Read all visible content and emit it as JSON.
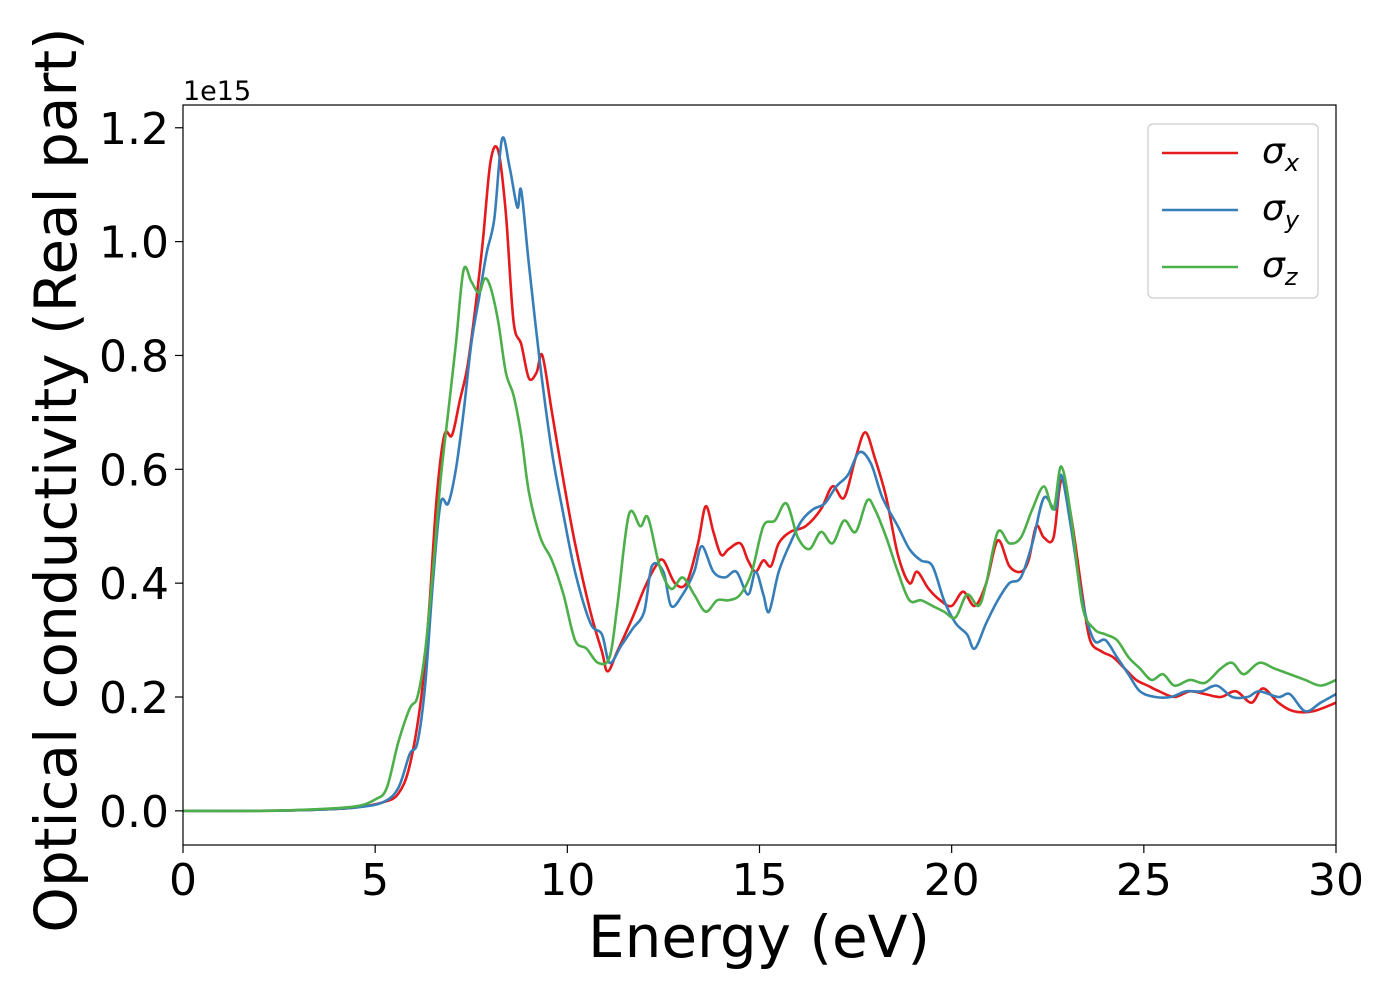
{
  "chart_data": {
    "type": "line",
    "title": "",
    "xlabel": "Energy (eV)",
    "ylabel": "Optical conductivity (Real part)",
    "y_offset_label": "1e15",
    "xlim": [
      0,
      30
    ],
    "ylim": [
      -0.06,
      1.24
    ],
    "x_ticks": [
      0,
      5,
      10,
      15,
      20,
      25,
      30
    ],
    "x_tick_labels": [
      "0",
      "5",
      "10",
      "15",
      "20",
      "25",
      "30"
    ],
    "y_ticks": [
      0.0,
      0.2,
      0.4,
      0.6,
      0.8,
      1.0,
      1.2
    ],
    "y_tick_labels": [
      "0.0",
      "0.2",
      "0.4",
      "0.6",
      "0.8",
      "1.0",
      "1.2"
    ],
    "grid": false,
    "legend_position": "top-right",
    "series": [
      {
        "name": "σx",
        "symbol": "σ",
        "subscript": "x",
        "color": "#e41a1c",
        "points": [
          [
            0,
            0
          ],
          [
            2,
            0
          ],
          [
            3.5,
            0.002
          ],
          [
            4.5,
            0.006
          ],
          [
            5.2,
            0.015
          ],
          [
            5.6,
            0.03
          ],
          [
            5.9,
            0.08
          ],
          [
            6.2,
            0.2
          ],
          [
            6.4,
            0.35
          ],
          [
            6.6,
            0.55
          ],
          [
            6.8,
            0.66
          ],
          [
            7.0,
            0.66
          ],
          [
            7.2,
            0.72
          ],
          [
            7.4,
            0.78
          ],
          [
            7.6,
            0.88
          ],
          [
            7.8,
            1.0
          ],
          [
            8.0,
            1.14
          ],
          [
            8.2,
            1.16
          ],
          [
            8.4,
            1.05
          ],
          [
            8.6,
            0.86
          ],
          [
            8.8,
            0.82
          ],
          [
            9.0,
            0.76
          ],
          [
            9.2,
            0.77
          ],
          [
            9.35,
            0.8
          ],
          [
            9.6,
            0.7
          ],
          [
            9.9,
            0.58
          ],
          [
            10.2,
            0.47
          ],
          [
            10.6,
            0.35
          ],
          [
            10.9,
            0.28
          ],
          [
            11.05,
            0.245
          ],
          [
            11.3,
            0.28
          ],
          [
            11.7,
            0.34
          ],
          [
            12.0,
            0.39
          ],
          [
            12.3,
            0.43
          ],
          [
            12.5,
            0.44
          ],
          [
            12.8,
            0.4
          ],
          [
            13.1,
            0.4
          ],
          [
            13.4,
            0.47
          ],
          [
            13.6,
            0.535
          ],
          [
            13.8,
            0.49
          ],
          [
            14.0,
            0.45
          ],
          [
            14.2,
            0.46
          ],
          [
            14.5,
            0.47
          ],
          [
            14.7,
            0.44
          ],
          [
            14.9,
            0.42
          ],
          [
            15.1,
            0.44
          ],
          [
            15.3,
            0.43
          ],
          [
            15.5,
            0.47
          ],
          [
            15.8,
            0.49
          ],
          [
            16.2,
            0.5
          ],
          [
            16.6,
            0.53
          ],
          [
            16.9,
            0.57
          ],
          [
            17.2,
            0.55
          ],
          [
            17.5,
            0.62
          ],
          [
            17.75,
            0.665
          ],
          [
            18.0,
            0.62
          ],
          [
            18.3,
            0.55
          ],
          [
            18.6,
            0.45
          ],
          [
            18.9,
            0.4
          ],
          [
            19.1,
            0.42
          ],
          [
            19.4,
            0.39
          ],
          [
            19.7,
            0.37
          ],
          [
            20.0,
            0.36
          ],
          [
            20.3,
            0.385
          ],
          [
            20.6,
            0.36
          ],
          [
            20.9,
            0.4
          ],
          [
            21.2,
            0.475
          ],
          [
            21.5,
            0.43
          ],
          [
            21.8,
            0.42
          ],
          [
            22.0,
            0.44
          ],
          [
            22.2,
            0.5
          ],
          [
            22.4,
            0.48
          ],
          [
            22.65,
            0.48
          ],
          [
            22.85,
            0.58
          ],
          [
            23.1,
            0.52
          ],
          [
            23.4,
            0.38
          ],
          [
            23.6,
            0.3
          ],
          [
            23.9,
            0.28
          ],
          [
            24.2,
            0.27
          ],
          [
            24.5,
            0.25
          ],
          [
            24.8,
            0.23
          ],
          [
            25.1,
            0.22
          ],
          [
            25.4,
            0.21
          ],
          [
            25.8,
            0.2
          ],
          [
            26.2,
            0.21
          ],
          [
            26.6,
            0.205
          ],
          [
            27.0,
            0.2
          ],
          [
            27.4,
            0.21
          ],
          [
            27.8,
            0.19
          ],
          [
            28.1,
            0.215
          ],
          [
            28.5,
            0.19
          ],
          [
            28.9,
            0.175
          ],
          [
            29.4,
            0.175
          ],
          [
            30,
            0.19
          ]
        ]
      },
      {
        "name": "σy",
        "symbol": "σ",
        "subscript": "y",
        "color": "#377eb8",
        "points": [
          [
            0,
            0
          ],
          [
            2,
            0
          ],
          [
            3.5,
            0.002
          ],
          [
            4.5,
            0.006
          ],
          [
            5.2,
            0.015
          ],
          [
            5.6,
            0.04
          ],
          [
            5.9,
            0.1
          ],
          [
            6.1,
            0.12
          ],
          [
            6.3,
            0.22
          ],
          [
            6.5,
            0.4
          ],
          [
            6.7,
            0.54
          ],
          [
            6.9,
            0.54
          ],
          [
            7.1,
            0.6
          ],
          [
            7.3,
            0.7
          ],
          [
            7.5,
            0.82
          ],
          [
            7.7,
            0.9
          ],
          [
            7.9,
            0.98
          ],
          [
            8.1,
            1.04
          ],
          [
            8.3,
            1.18
          ],
          [
            8.5,
            1.13
          ],
          [
            8.7,
            1.06
          ],
          [
            8.8,
            1.09
          ],
          [
            9.0,
            0.96
          ],
          [
            9.3,
            0.78
          ],
          [
            9.6,
            0.63
          ],
          [
            9.9,
            0.52
          ],
          [
            10.2,
            0.42
          ],
          [
            10.6,
            0.33
          ],
          [
            10.9,
            0.31
          ],
          [
            11.1,
            0.26
          ],
          [
            11.4,
            0.29
          ],
          [
            11.7,
            0.32
          ],
          [
            12.0,
            0.35
          ],
          [
            12.2,
            0.43
          ],
          [
            12.5,
            0.42
          ],
          [
            12.7,
            0.36
          ],
          [
            13.0,
            0.38
          ],
          [
            13.3,
            0.42
          ],
          [
            13.5,
            0.465
          ],
          [
            13.8,
            0.42
          ],
          [
            14.1,
            0.41
          ],
          [
            14.4,
            0.42
          ],
          [
            14.7,
            0.38
          ],
          [
            14.9,
            0.42
          ],
          [
            15.1,
            0.38
          ],
          [
            15.25,
            0.35
          ],
          [
            15.5,
            0.42
          ],
          [
            15.8,
            0.47
          ],
          [
            16.1,
            0.51
          ],
          [
            16.4,
            0.53
          ],
          [
            16.7,
            0.54
          ],
          [
            17.0,
            0.57
          ],
          [
            17.3,
            0.59
          ],
          [
            17.6,
            0.63
          ],
          [
            17.9,
            0.61
          ],
          [
            18.2,
            0.55
          ],
          [
            18.6,
            0.5
          ],
          [
            18.9,
            0.46
          ],
          [
            19.2,
            0.44
          ],
          [
            19.5,
            0.43
          ],
          [
            19.8,
            0.37
          ],
          [
            20.1,
            0.33
          ],
          [
            20.4,
            0.31
          ],
          [
            20.6,
            0.285
          ],
          [
            20.9,
            0.33
          ],
          [
            21.2,
            0.37
          ],
          [
            21.5,
            0.4
          ],
          [
            21.8,
            0.41
          ],
          [
            22.1,
            0.47
          ],
          [
            22.4,
            0.55
          ],
          [
            22.7,
            0.53
          ],
          [
            22.85,
            0.59
          ],
          [
            23.1,
            0.5
          ],
          [
            23.4,
            0.37
          ],
          [
            23.7,
            0.3
          ],
          [
            24.0,
            0.3
          ],
          [
            24.3,
            0.27
          ],
          [
            24.6,
            0.24
          ],
          [
            24.9,
            0.21
          ],
          [
            25.3,
            0.2
          ],
          [
            25.7,
            0.2
          ],
          [
            26.1,
            0.21
          ],
          [
            26.5,
            0.21
          ],
          [
            26.9,
            0.22
          ],
          [
            27.3,
            0.2
          ],
          [
            27.7,
            0.2
          ],
          [
            28.0,
            0.21
          ],
          [
            28.5,
            0.2
          ],
          [
            28.8,
            0.205
          ],
          [
            29.2,
            0.175
          ],
          [
            29.6,
            0.19
          ],
          [
            30,
            0.205
          ]
        ]
      },
      {
        "name": "σz",
        "symbol": "σ",
        "subscript": "z",
        "color": "#4daf4a",
        "points": [
          [
            0,
            0
          ],
          [
            2,
            0
          ],
          [
            3.5,
            0.003
          ],
          [
            4.5,
            0.008
          ],
          [
            5.0,
            0.02
          ],
          [
            5.3,
            0.04
          ],
          [
            5.6,
            0.12
          ],
          [
            5.9,
            0.18
          ],
          [
            6.1,
            0.2
          ],
          [
            6.3,
            0.28
          ],
          [
            6.5,
            0.42
          ],
          [
            6.7,
            0.58
          ],
          [
            6.9,
            0.7
          ],
          [
            7.1,
            0.82
          ],
          [
            7.3,
            0.95
          ],
          [
            7.5,
            0.93
          ],
          [
            7.7,
            0.91
          ],
          [
            7.85,
            0.935
          ],
          [
            8.0,
            0.92
          ],
          [
            8.2,
            0.86
          ],
          [
            8.4,
            0.77
          ],
          [
            8.6,
            0.73
          ],
          [
            8.8,
            0.66
          ],
          [
            9.0,
            0.56
          ],
          [
            9.3,
            0.48
          ],
          [
            9.6,
            0.44
          ],
          [
            9.9,
            0.38
          ],
          [
            10.2,
            0.3
          ],
          [
            10.5,
            0.285
          ],
          [
            10.8,
            0.26
          ],
          [
            11.1,
            0.27
          ],
          [
            11.3,
            0.36
          ],
          [
            11.6,
            0.52
          ],
          [
            11.9,
            0.5
          ],
          [
            12.1,
            0.515
          ],
          [
            12.4,
            0.43
          ],
          [
            12.7,
            0.39
          ],
          [
            13.0,
            0.41
          ],
          [
            13.3,
            0.38
          ],
          [
            13.6,
            0.35
          ],
          [
            13.9,
            0.37
          ],
          [
            14.2,
            0.37
          ],
          [
            14.5,
            0.38
          ],
          [
            14.8,
            0.42
          ],
          [
            15.1,
            0.5
          ],
          [
            15.4,
            0.51
          ],
          [
            15.7,
            0.54
          ],
          [
            16.0,
            0.48
          ],
          [
            16.3,
            0.46
          ],
          [
            16.6,
            0.49
          ],
          [
            16.9,
            0.47
          ],
          [
            17.2,
            0.51
          ],
          [
            17.5,
            0.49
          ],
          [
            17.8,
            0.545
          ],
          [
            18.0,
            0.53
          ],
          [
            18.3,
            0.48
          ],
          [
            18.6,
            0.42
          ],
          [
            18.9,
            0.37
          ],
          [
            19.2,
            0.37
          ],
          [
            19.5,
            0.36
          ],
          [
            19.8,
            0.35
          ],
          [
            20.1,
            0.34
          ],
          [
            20.4,
            0.38
          ],
          [
            20.7,
            0.36
          ],
          [
            20.9,
            0.4
          ],
          [
            21.2,
            0.49
          ],
          [
            21.5,
            0.47
          ],
          [
            21.8,
            0.48
          ],
          [
            22.1,
            0.53
          ],
          [
            22.4,
            0.57
          ],
          [
            22.65,
            0.53
          ],
          [
            22.85,
            0.605
          ],
          [
            23.1,
            0.52
          ],
          [
            23.4,
            0.36
          ],
          [
            23.7,
            0.32
          ],
          [
            24.0,
            0.31
          ],
          [
            24.3,
            0.3
          ],
          [
            24.6,
            0.27
          ],
          [
            24.9,
            0.25
          ],
          [
            25.2,
            0.23
          ],
          [
            25.5,
            0.24
          ],
          [
            25.8,
            0.22
          ],
          [
            26.2,
            0.23
          ],
          [
            26.6,
            0.225
          ],
          [
            27.0,
            0.25
          ],
          [
            27.3,
            0.26
          ],
          [
            27.6,
            0.24
          ],
          [
            28.0,
            0.26
          ],
          [
            28.4,
            0.25
          ],
          [
            28.8,
            0.24
          ],
          [
            29.2,
            0.23
          ],
          [
            29.6,
            0.22
          ],
          [
            30,
            0.23
          ]
        ]
      }
    ]
  }
}
